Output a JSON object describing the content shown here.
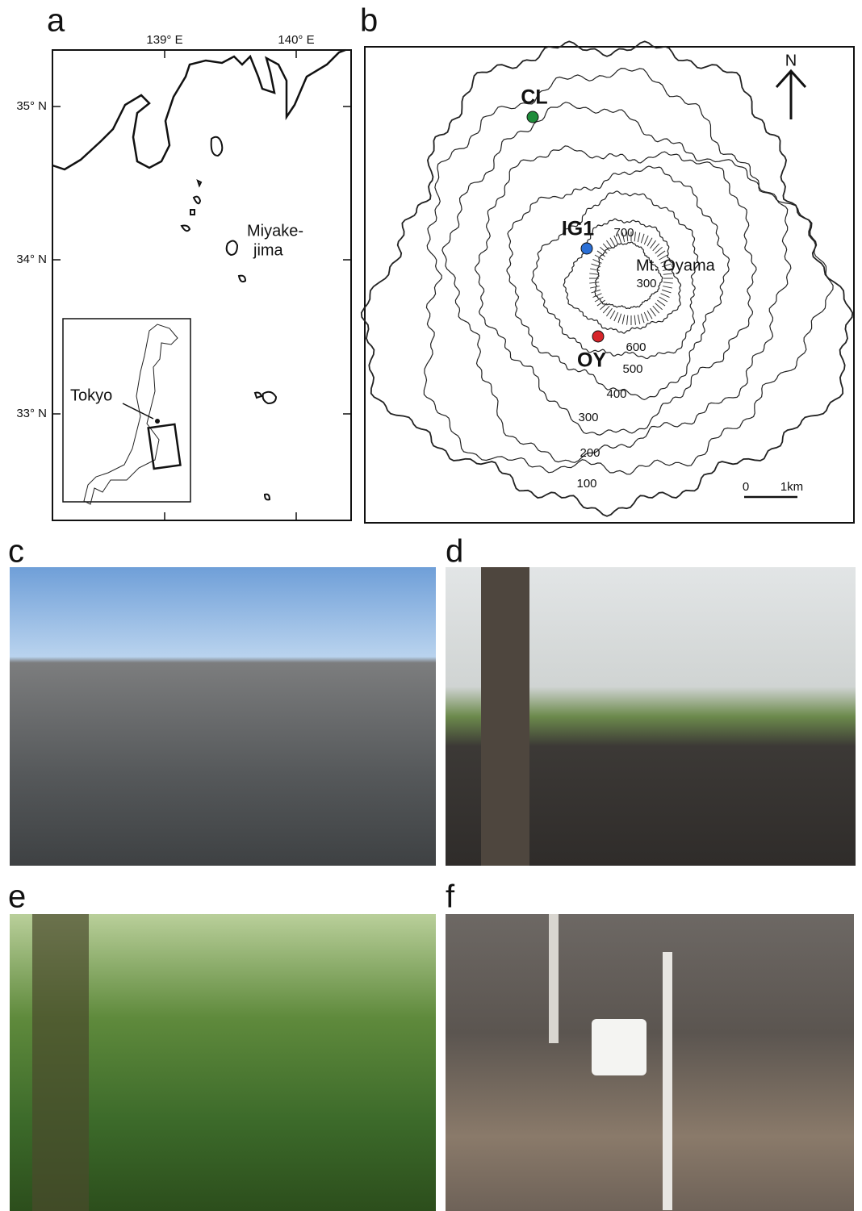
{
  "panels": [
    {
      "label": "a"
    },
    {
      "label": "b"
    },
    {
      "label": "c"
    },
    {
      "label": "d"
    },
    {
      "label": "e"
    },
    {
      "label": "f"
    }
  ],
  "map_a": {
    "lon_labels": [
      "139° E",
      "140° E"
    ],
    "lat_labels": [
      "35° N",
      "34° N",
      "33° N"
    ],
    "island_label": [
      "Miyake-",
      "jima"
    ],
    "inset_label": "Tokyo"
  },
  "map_b": {
    "north": "N",
    "sites": [
      {
        "label": "CL",
        "color": "#1e8c3a"
      },
      {
        "label": "IG1",
        "color": "#2a6fd6"
      },
      {
        "label": "OY",
        "color": "#d6242a"
      }
    ],
    "peak_label": "Mt. Oyama",
    "contour_labels": [
      "700",
      "300",
      "600",
      "500",
      "400",
      "300",
      "200",
      "100"
    ],
    "scale_labels": [
      "0",
      "1km"
    ]
  }
}
